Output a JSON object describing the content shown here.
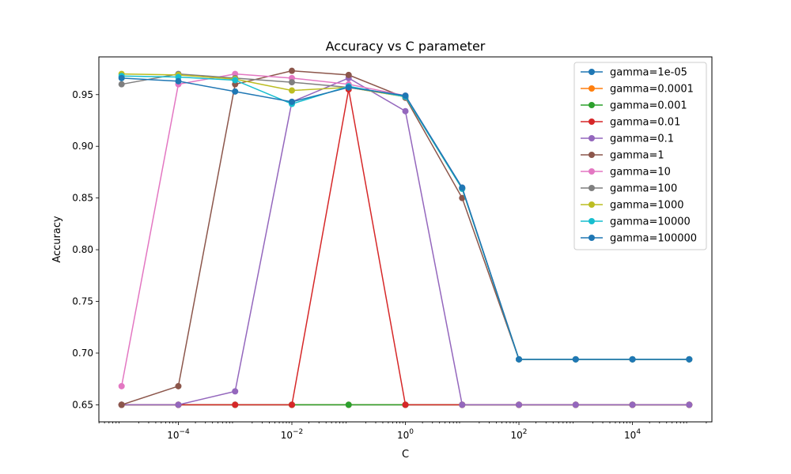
{
  "chart_data": {
    "type": "line",
    "title": "Accuracy vs C parameter",
    "xlabel": "C",
    "ylabel": "Accuracy",
    "xscale": "log",
    "xlim": [
      3.98e-06,
      251000
    ],
    "ylim": [
      0.6335,
      0.9865
    ],
    "grid": false,
    "legend_position": "top-right",
    "x": [
      1e-05,
      0.0001,
      0.001,
      0.01,
      0.1,
      1,
      10,
      100,
      1000,
      10000,
      100000
    ],
    "xticks": [
      {
        "value": 0.0001,
        "base": "10",
        "exp": "−4"
      },
      {
        "value": 0.01,
        "base": "10",
        "exp": "−2"
      },
      {
        "value": 1,
        "base": "10",
        "exp": "0"
      },
      {
        "value": 100,
        "base": "10",
        "exp": "2"
      },
      {
        "value": 10000,
        "base": "10",
        "exp": "4"
      }
    ],
    "yticks": [
      0.65,
      0.7,
      0.75,
      0.8,
      0.85,
      0.9,
      0.95
    ],
    "ytick_labels": [
      "0.65",
      "0.70",
      "0.75",
      "0.80",
      "0.85",
      "0.90",
      "0.95"
    ],
    "series": [
      {
        "name": "gamma=1e-05",
        "color": "#1f77b4",
        "values": [
          0.65,
          0.65,
          0.65,
          0.65,
          0.65,
          0.65,
          0.65,
          0.65,
          0.65,
          0.65,
          0.65
        ]
      },
      {
        "name": "gamma=0.0001",
        "color": "#ff7f0e",
        "values": [
          0.65,
          0.65,
          0.65,
          0.65,
          0.65,
          0.65,
          0.65,
          0.65,
          0.65,
          0.65,
          0.65
        ]
      },
      {
        "name": "gamma=0.001",
        "color": "#2ca02c",
        "values": [
          0.65,
          0.65,
          0.65,
          0.65,
          0.65,
          0.65,
          0.65,
          0.65,
          0.65,
          0.65,
          0.65
        ]
      },
      {
        "name": "gamma=0.01",
        "color": "#d62728",
        "values": [
          0.65,
          0.65,
          0.65,
          0.65,
          0.955,
          0.65,
          0.65,
          0.65,
          0.65,
          0.65,
          0.65
        ]
      },
      {
        "name": "gamma=0.1",
        "color": "#9467bd",
        "values": [
          0.65,
          0.65,
          0.663,
          0.943,
          0.966,
          0.934,
          0.65,
          0.65,
          0.65,
          0.65,
          0.65
        ]
      },
      {
        "name": "gamma=1",
        "color": "#8c564b",
        "values": [
          0.65,
          0.668,
          0.96,
          0.973,
          0.969,
          0.947,
          0.85,
          0.694,
          0.694,
          0.694,
          0.694
        ]
      },
      {
        "name": "gamma=10",
        "color": "#e377c2",
        "values": [
          0.668,
          0.96,
          0.97,
          0.966,
          0.96,
          0.949,
          0.86,
          0.694,
          0.694,
          0.694,
          0.694
        ]
      },
      {
        "name": "gamma=100",
        "color": "#7f7f7f",
        "values": [
          0.96,
          0.97,
          0.966,
          0.962,
          0.957,
          0.948,
          0.859,
          0.694,
          0.694,
          0.694,
          0.694
        ]
      },
      {
        "name": "gamma=1000",
        "color": "#bcbd22",
        "values": [
          0.97,
          0.969,
          0.965,
          0.954,
          0.957,
          0.948,
          0.859,
          0.694,
          0.694,
          0.694,
          0.694
        ]
      },
      {
        "name": "gamma=10000",
        "color": "#17becf",
        "values": [
          0.968,
          0.967,
          0.964,
          0.941,
          0.958,
          0.948,
          0.859,
          0.694,
          0.694,
          0.694,
          0.694
        ]
      },
      {
        "name": "gamma=100000",
        "color": "#1f77b4",
        "values": [
          0.966,
          0.963,
          0.953,
          0.943,
          0.957,
          0.949,
          0.86,
          0.694,
          0.694,
          0.694,
          0.694
        ]
      }
    ]
  }
}
